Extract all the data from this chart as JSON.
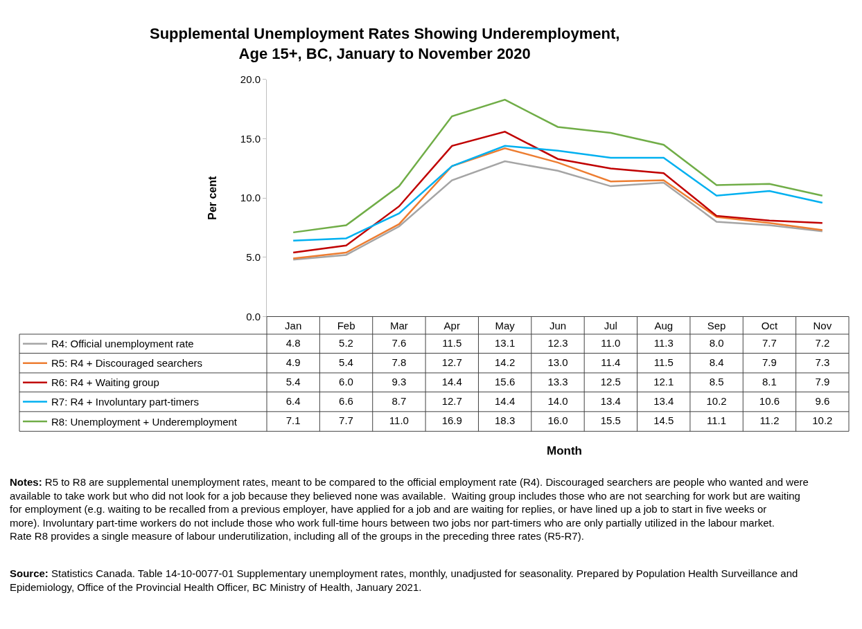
{
  "chart_data": {
    "type": "line",
    "title": "Supplemental Unemployment Rates Showing Underemployment, Age 15+, BC, January to November 2020",
    "ylabel": "Per cent",
    "categories": [
      "Jan",
      "Feb",
      "Mar",
      "Apr",
      "May",
      "Jun",
      "Jul",
      "Aug",
      "Sep",
      "Oct",
      "Nov"
    ],
    "series": [
      {
        "name": "R4: Official unemployment rate",
        "color": "#a5a5a5",
        "values": [
          4.8,
          5.2,
          7.6,
          11.5,
          13.1,
          12.3,
          11.0,
          11.3,
          8.0,
          7.7,
          7.2
        ]
      },
      {
        "name": "R5: R4 + Discouraged searchers",
        "color": "#ed7d31",
        "values": [
          4.9,
          5.4,
          7.8,
          12.7,
          14.2,
          13.0,
          11.4,
          11.5,
          8.4,
          7.9,
          7.3
        ]
      },
      {
        "name": "R6: R4 + Waiting group",
        "color": "#c00000",
        "values": [
          5.4,
          6.0,
          9.3,
          14.4,
          15.6,
          13.3,
          12.5,
          12.1,
          8.5,
          8.1,
          7.9
        ]
      },
      {
        "name": "R7: R4 + Involuntary part-timers",
        "color": "#00b0f0",
        "values": [
          6.4,
          6.6,
          8.7,
          12.7,
          14.4,
          14.0,
          13.4,
          13.4,
          10.2,
          10.6,
          9.6
        ]
      },
      {
        "name": "R8: Unemployment + Underemployment",
        "color": "#70ad47",
        "values": [
          7.1,
          7.7,
          11.0,
          16.9,
          18.3,
          16.0,
          15.5,
          14.5,
          11.1,
          11.2,
          10.2
        ]
      }
    ],
    "ylim": [
      0,
      20
    ],
    "yticks": [
      {
        "value": 0,
        "label": "0.0"
      },
      {
        "value": 5,
        "label": "5.0"
      },
      {
        "value": 10,
        "label": "10.0"
      },
      {
        "value": 15,
        "label": "15.0"
      },
      {
        "value": 20,
        "label": "20.0"
      }
    ],
    "legend": "bottom",
    "marker": "none",
    "line_style": "solid",
    "value_labels": [
      [
        "4.8",
        "5.2",
        "7.6",
        "11.5",
        "13.1",
        "12.3",
        "11.0",
        "11.3",
        "8.0",
        "7.7",
        "7.2"
      ],
      [
        "4.9",
        "5.4",
        "7.8",
        "12.7",
        "14.2",
        "13.0",
        "11.4",
        "11.5",
        "8.4",
        "7.9",
        "7.3"
      ],
      [
        "5.4",
        "6.0",
        "9.3",
        "14.4",
        "15.6",
        "13.3",
        "12.5",
        "12.1",
        "8.5",
        "8.1",
        "7.9"
      ],
      [
        "6.4",
        "6.6",
        "8.7",
        "12.7",
        "14.4",
        "14.0",
        "13.4",
        "13.4",
        "10.2",
        "10.6",
        "9.6"
      ],
      [
        "7.1",
        "7.7",
        "11.0",
        "16.9",
        "18.3",
        "16.0",
        "15.5",
        "14.5",
        "11.1",
        "11.2",
        "10.2"
      ]
    ],
    "annotations": [
      "Month",
      "Notes: R5 to R8 are supplemental unemployment rates, meant to be compared to the official employment rate (R4). Discouraged searchers are people who wanted and were available to take work but who did not look for a job because they believed none was available.  Waiting group includes those who are not searching for work but are waiting for employment (e.g. waiting to be recalled from a previous employer, have applied for a job and are waiting for replies, or have lined up a job to start in five weeks or more). Involuntary part-time workers do not include those who work full-time hours between two jobs nor part-timers who are only partially utilized in the labour market. Rate R8 provides a single measure of labour underutilization, including all of the groups in the preceding three rates (R5-R7).",
      "Source: Statistics Canada. Table 14-10-0077-01 Supplementary unemployment rates, monthly, unadjusted for seasonality. Prepared by Population Health Surveillance and Epidemiology, Office of the Provincial Health Officer, BC Ministry of Health, January 2021."
    ]
  }
}
